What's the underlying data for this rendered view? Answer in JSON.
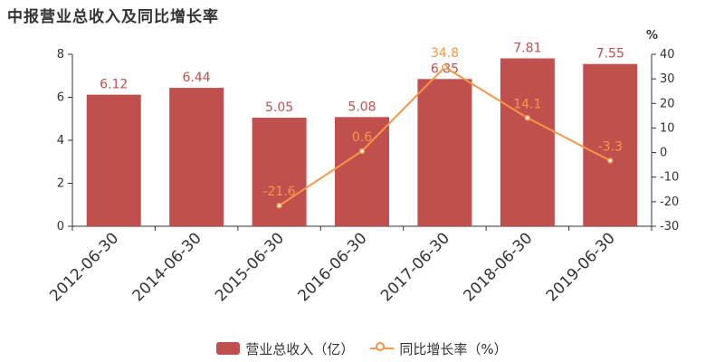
{
  "title": "中报营业总收入及同比增长率",
  "colors": {
    "bar": "#c0504d",
    "line": "#f79646",
    "bar_label": "#c0504d",
    "line_label": "#f79646"
  },
  "chart_data": {
    "type": "bar",
    "categories": [
      "2012-06-30",
      "2014-06-30",
      "2015-06-30",
      "2016-06-30",
      "2017-06-30",
      "2018-06-30",
      "2019-06-30"
    ],
    "series": [
      {
        "name": "营业总收入（亿）",
        "type": "bar",
        "axis": "left",
        "values": [
          6.12,
          6.44,
          5.05,
          5.08,
          6.85,
          7.81,
          7.55
        ],
        "labels": [
          "6.12",
          "6.44",
          "5.05",
          "5.08",
          "6.85",
          "7.81",
          "7.55"
        ]
      },
      {
        "name": "同比增长率（%）",
        "type": "line",
        "axis": "right",
        "values": [
          null,
          null,
          -21.6,
          0.6,
          34.8,
          14.1,
          -3.3
        ],
        "labels": [
          "",
          "",
          "-21.6",
          "0.6",
          "34.8",
          "14.1",
          "-3.3"
        ]
      }
    ],
    "y_left": {
      "min": 0,
      "max": 8,
      "ticks": [
        "0",
        "2",
        "4",
        "6",
        "8"
      ]
    },
    "y_right": {
      "min": -30,
      "max": 40,
      "unit": "%",
      "ticks": [
        "-30",
        "-20",
        "-10",
        "0",
        "10",
        "20",
        "30",
        "40"
      ]
    },
    "grid": false,
    "legend_position": "bottom"
  },
  "legend": {
    "bar_label": "营业总收入（亿）",
    "line_label": "同比增长率（%）"
  }
}
